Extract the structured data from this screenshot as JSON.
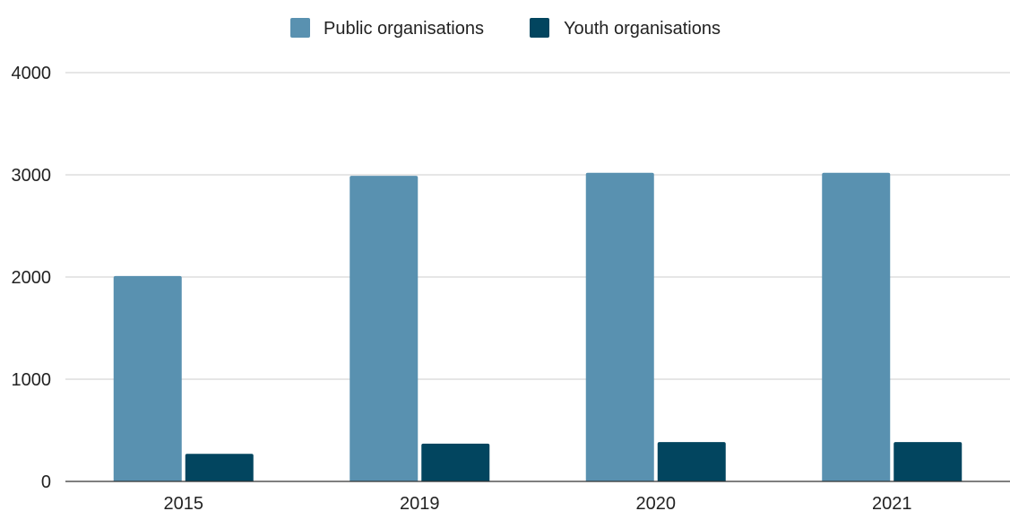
{
  "chart_data": {
    "type": "bar",
    "title": "",
    "xlabel": "",
    "ylabel": "",
    "categories": [
      "2015",
      "2019",
      "2020",
      "2021"
    ],
    "series": [
      {
        "name": "Public organisations",
        "color": "#5991b0",
        "values": [
          2010,
          2990,
          3020,
          3020
        ]
      },
      {
        "name": "Youth organisations",
        "color": "#02455f",
        "values": [
          270,
          370,
          385,
          385
        ]
      }
    ],
    "ylim": [
      0,
      4000
    ],
    "yticks": [
      "0",
      "1000",
      "2000",
      "3000",
      "4000"
    ],
    "grid": true,
    "legend_position": "top-center"
  }
}
